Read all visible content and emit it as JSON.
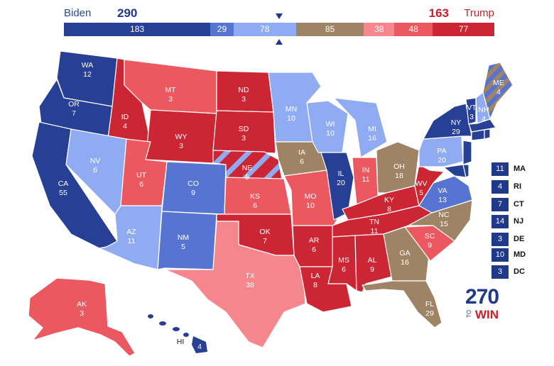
{
  "header": {
    "biden_label": "Biden",
    "biden_total": "290",
    "trump_total": "163",
    "trump_label": "Trump"
  },
  "bar": [
    {
      "value": "183",
      "color": "#273f94",
      "electoral_votes": 183
    },
    {
      "value": "29",
      "color": "#5874d3",
      "electoral_votes": 29
    },
    {
      "value": "78",
      "color": "#8facf2",
      "electoral_votes": 78
    },
    {
      "value": "85",
      "color": "#9e8464",
      "electoral_votes": 85
    },
    {
      "value": "38",
      "color": "#f5868e",
      "electoral_votes": 38
    },
    {
      "value": "48",
      "color": "#ec5860",
      "electoral_votes": 48
    },
    {
      "value": "77",
      "color": "#cc2533",
      "electoral_votes": 77
    }
  ],
  "colors": {
    "safe_dem": "#273f94",
    "likely_dem": "#5874d3",
    "lean_dem": "#8facf2",
    "tossup": "#9e8464",
    "tilt_rep": "#f5868e",
    "likely_rep": "#ec5860",
    "safe_rep": "#cc2533"
  },
  "states": {
    "WA": {
      "abbr": "WA",
      "ev": "12"
    },
    "OR": {
      "abbr": "OR",
      "ev": "7"
    },
    "CA": {
      "abbr": "CA",
      "ev": "55"
    },
    "ID": {
      "abbr": "ID",
      "ev": "4"
    },
    "NV": {
      "abbr": "NV",
      "ev": "6"
    },
    "MT": {
      "abbr": "MT",
      "ev": "3"
    },
    "WY": {
      "abbr": "WY",
      "ev": "3"
    },
    "UT": {
      "abbr": "UT",
      "ev": "6"
    },
    "AZ": {
      "abbr": "AZ",
      "ev": "11"
    },
    "CO": {
      "abbr": "CO",
      "ev": "9"
    },
    "NM": {
      "abbr": "NM",
      "ev": "5"
    },
    "ND": {
      "abbr": "ND",
      "ev": "3"
    },
    "SD": {
      "abbr": "SD",
      "ev": "3"
    },
    "NE": {
      "abbr": "NE",
      "ev": "5"
    },
    "KS": {
      "abbr": "KS",
      "ev": "6"
    },
    "OK": {
      "abbr": "OK",
      "ev": "7"
    },
    "TX": {
      "abbr": "TX",
      "ev": "38"
    },
    "MN": {
      "abbr": "MN",
      "ev": "10"
    },
    "IA": {
      "abbr": "IA",
      "ev": "6"
    },
    "MO": {
      "abbr": "MO",
      "ev": "10"
    },
    "AR": {
      "abbr": "AR",
      "ev": "6"
    },
    "LA": {
      "abbr": "LA",
      "ev": "8"
    },
    "WI": {
      "abbr": "WI",
      "ev": "10"
    },
    "IL": {
      "abbr": "IL",
      "ev": "20"
    },
    "MI": {
      "abbr": "MI",
      "ev": "16"
    },
    "IN": {
      "abbr": "IN",
      "ev": "11"
    },
    "OH": {
      "abbr": "OH",
      "ev": "18"
    },
    "KY": {
      "abbr": "KY",
      "ev": "8"
    },
    "TN": {
      "abbr": "TN",
      "ev": "11"
    },
    "MS": {
      "abbr": "MS",
      "ev": "6"
    },
    "AL": {
      "abbr": "AL",
      "ev": "9"
    },
    "GA": {
      "abbr": "GA",
      "ev": "16"
    },
    "FL": {
      "abbr": "FL",
      "ev": "29"
    },
    "SC": {
      "abbr": "SC",
      "ev": "9"
    },
    "NC": {
      "abbr": "NC",
      "ev": "15"
    },
    "VA": {
      "abbr": "VA",
      "ev": "13"
    },
    "WV": {
      "abbr": "WV",
      "ev": "5"
    },
    "PA": {
      "abbr": "PA",
      "ev": "20"
    },
    "NY": {
      "abbr": "NY",
      "ev": "29"
    },
    "VT": {
      "abbr": "VT",
      "ev": "3"
    },
    "NH": {
      "abbr": "NH",
      "ev": "4"
    },
    "ME": {
      "abbr": "ME",
      "ev": "4"
    },
    "AK": {
      "abbr": "AK",
      "ev": "3"
    },
    "HI": {
      "abbr": "HI",
      "ev": "4"
    }
  },
  "small_states": [
    {
      "ev": "11",
      "abbr": "MA"
    },
    {
      "ev": "4",
      "abbr": "RI"
    },
    {
      "ev": "7",
      "abbr": "CT"
    },
    {
      "ev": "14",
      "abbr": "NJ"
    },
    {
      "ev": "3",
      "abbr": "DE"
    },
    {
      "ev": "10",
      "abbr": "MD"
    },
    {
      "ev": "3",
      "abbr": "DC"
    }
  ],
  "logo": {
    "number": "270",
    "to": "TO",
    "win": "WIN"
  }
}
